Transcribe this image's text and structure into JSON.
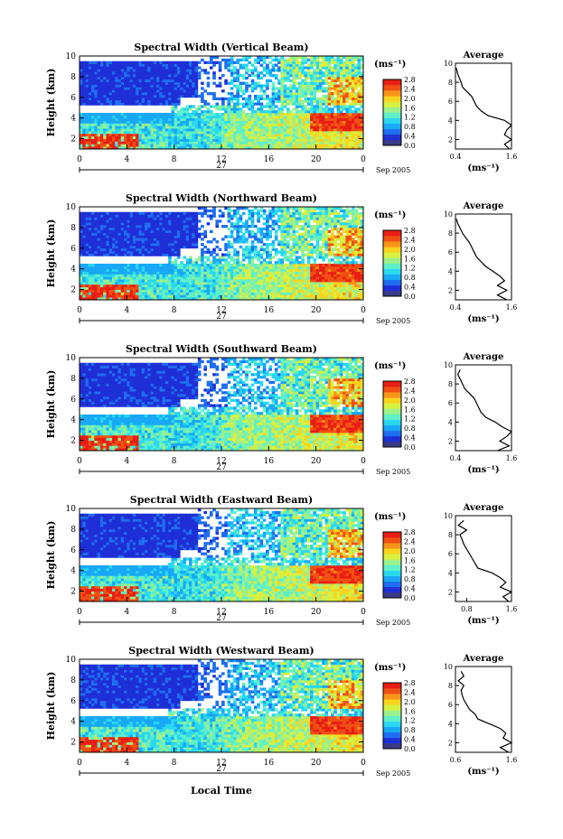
{
  "figure": {
    "date_label": "Sep 2005",
    "day_label": "27",
    "xlabel": "Local Time",
    "ylabel": "Height (km)",
    "unit_label": "(ms⁻¹)",
    "avg_title": "Average",
    "avg_xlabel": "(ms⁻¹)",
    "colorbar_ticks": [
      "2.8",
      "2.4",
      "2.0",
      "1.6",
      "1.2",
      "0.8",
      "0.4",
      "0.0"
    ],
    "colormap": [
      "#3a3a86",
      "#1f2fd6",
      "#1f6ef0",
      "#19a8f5",
      "#29d8f0",
      "#5ff0c8",
      "#9ef08a",
      "#d8f040",
      "#f8d420",
      "#f89418",
      "#f05014",
      "#e81e14"
    ]
  },
  "chart_data": [
    {
      "type": "heatmap",
      "title": "Spectral Width (Vertical Beam)",
      "x_range": [
        0,
        24
      ],
      "y_range": [
        1,
        10
      ],
      "x_ticks": [
        "0",
        "4",
        "8",
        "12",
        "16",
        "20",
        "0"
      ],
      "y_ticks": [
        "10",
        "8",
        "6",
        "4",
        "2"
      ],
      "avg_xticks": [
        "0.4",
        "1.6"
      ],
      "avg_xlim": [
        0.4,
        1.6
      ],
      "avg_profile": {
        "height": [
          1.0,
          1.5,
          2.0,
          2.5,
          3.0,
          3.5,
          4.0,
          4.5,
          5.0,
          5.5,
          6.0,
          6.5,
          7.0,
          7.5,
          8.0,
          8.5,
          9.0,
          9.5
        ],
        "width": [
          1.55,
          1.45,
          1.6,
          1.45,
          1.5,
          1.6,
          1.45,
          1.1,
          0.95,
          0.85,
          0.8,
          0.75,
          0.65,
          0.55,
          0.52,
          0.48,
          0.44,
          0.42
        ]
      }
    },
    {
      "type": "heatmap",
      "title": "Spectral Width (Northward Beam)",
      "x_range": [
        0,
        24
      ],
      "y_range": [
        1,
        10
      ],
      "x_ticks": [
        "0",
        "4",
        "8",
        "12",
        "16",
        "20",
        "0"
      ],
      "y_ticks": [
        "10",
        "8",
        "6",
        "4",
        "2"
      ],
      "avg_xticks": [
        "0.4",
        "1.6"
      ],
      "avg_xlim": [
        0.4,
        1.6
      ],
      "avg_profile": {
        "height": [
          1.0,
          1.5,
          2.0,
          2.5,
          3.0,
          3.5,
          4.0,
          4.5,
          5.0,
          5.5,
          6.0,
          6.5,
          7.0,
          7.5,
          8.0,
          8.5,
          9.0,
          9.5
        ],
        "width": [
          1.5,
          1.3,
          1.5,
          1.3,
          1.45,
          1.35,
          1.2,
          1.05,
          0.95,
          0.85,
          0.8,
          0.75,
          0.7,
          0.62,
          0.55,
          0.5,
          0.45,
          0.42
        ]
      }
    },
    {
      "type": "heatmap",
      "title": "Spectral Width (Southward Beam)",
      "x_range": [
        0,
        24
      ],
      "y_range": [
        1,
        10
      ],
      "x_ticks": [
        "0",
        "4",
        "8",
        "12",
        "16",
        "20",
        "0"
      ],
      "y_ticks": [
        "10",
        "8",
        "6",
        "4",
        "2"
      ],
      "avg_xticks": [
        "0.4",
        "1.6"
      ],
      "avg_xlim": [
        0.4,
        1.6
      ],
      "avg_profile": {
        "height": [
          1.0,
          1.5,
          2.0,
          2.5,
          3.0,
          3.5,
          4.0,
          4.5,
          5.0,
          5.5,
          6.0,
          6.5,
          7.0,
          7.5,
          8.0,
          8.5,
          9.0,
          9.5
        ],
        "width": [
          1.3,
          1.55,
          1.35,
          1.5,
          1.6,
          1.4,
          1.25,
          1.05,
          0.95,
          0.9,
          0.85,
          0.8,
          0.7,
          0.6,
          0.55,
          0.5,
          0.45,
          0.5
        ]
      }
    },
    {
      "type": "heatmap",
      "title": "Spectral Width (Eastward Beam)",
      "x_range": [
        0,
        24
      ],
      "y_range": [
        1,
        10
      ],
      "x_ticks": [
        "0",
        "4",
        "8",
        "12",
        "16",
        "20",
        "0"
      ],
      "y_ticks": [
        "10",
        "8",
        "6",
        "4",
        "2"
      ],
      "avg_xticks": [
        "0.8",
        "1.6"
      ],
      "avg_xlim": [
        0.6,
        1.6
      ],
      "avg_profile": {
        "height": [
          1.0,
          1.5,
          2.0,
          2.5,
          3.0,
          3.5,
          4.0,
          4.5,
          5.0,
          5.5,
          6.0,
          6.5,
          7.0,
          7.5,
          8.0,
          8.5,
          9.0,
          9.5
        ],
        "width": [
          1.55,
          1.45,
          1.6,
          1.4,
          1.5,
          1.4,
          1.25,
          1.0,
          0.95,
          0.9,
          0.85,
          0.8,
          0.75,
          0.72,
          0.68,
          0.8,
          0.65,
          0.75
        ]
      }
    },
    {
      "type": "heatmap",
      "title": "Spectral Width (Westward Beam)",
      "x_range": [
        0,
        24
      ],
      "y_range": [
        1,
        10
      ],
      "x_ticks": [
        "0",
        "4",
        "8",
        "12",
        "16",
        "20",
        "0"
      ],
      "y_ticks": [
        "10",
        "8",
        "6",
        "4",
        "2"
      ],
      "avg_xticks": [
        "0.6",
        "1.6"
      ],
      "avg_xlim": [
        0.6,
        1.6
      ],
      "avg_profile": {
        "height": [
          1.0,
          1.5,
          2.0,
          2.5,
          3.0,
          3.5,
          4.0,
          4.5,
          5.0,
          5.5,
          6.0,
          6.5,
          7.0,
          7.5,
          8.0,
          8.5,
          9.0,
          9.5
        ],
        "width": [
          1.55,
          1.4,
          1.6,
          1.45,
          1.5,
          1.4,
          1.2,
          1.0,
          0.95,
          0.85,
          0.8,
          0.75,
          0.72,
          0.7,
          0.75,
          0.65,
          0.75,
          0.7
        ]
      }
    }
  ]
}
